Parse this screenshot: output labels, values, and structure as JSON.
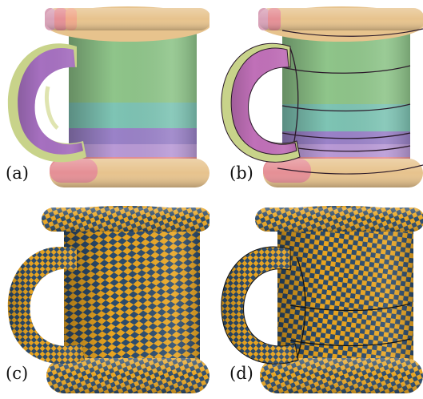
{
  "figure": {
    "panels": [
      {
        "label": "(a)",
        "style": "colored-patches",
        "seams": false
      },
      {
        "label": "(b)",
        "style": "colored-patches",
        "seams": true
      },
      {
        "label": "(c)",
        "style": "checkerboard",
        "distortion": "high",
        "seams": false
      },
      {
        "label": "(d)",
        "style": "checkerboard",
        "distortion": "low",
        "seams": true
      }
    ],
    "colors": {
      "rim": "#e7c38d",
      "patch_green": "#8fc58a",
      "patch_teal": "#7ec4b4",
      "patch_purple": "#9a82c8",
      "patch_pink": "#e58f95",
      "handle_purple": "#a670c0",
      "handle_olive": "#c8d38a",
      "checker_gold": "#e9a521",
      "checker_navy": "#2a4a6c",
      "seam": "#2b1a2a"
    }
  }
}
